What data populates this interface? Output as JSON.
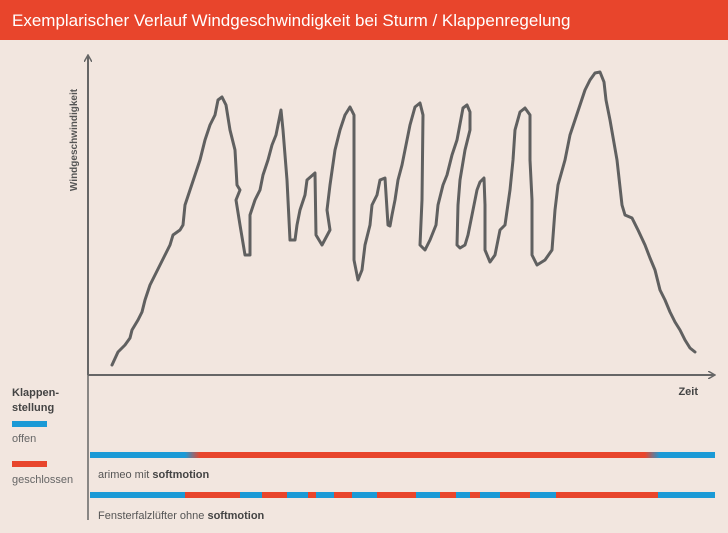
{
  "header": {
    "title": "Exemplarischer Verlauf Windgeschwindigkeit bei Sturm / Klappenregelung"
  },
  "axes": {
    "y_label": "Windgeschwindigkeit",
    "x_label": "Zeit"
  },
  "legend": {
    "title_line1": "Klappen-",
    "title_line2": "stellung",
    "open": "offen",
    "closed": "geschlossen"
  },
  "rows": [
    {
      "label_text": "arimeo mit ",
      "label_bold": "softmotion"
    },
    {
      "label_text": "Fensterfalzlüfter ohne ",
      "label_bold": "softmotion"
    }
  ]
}
